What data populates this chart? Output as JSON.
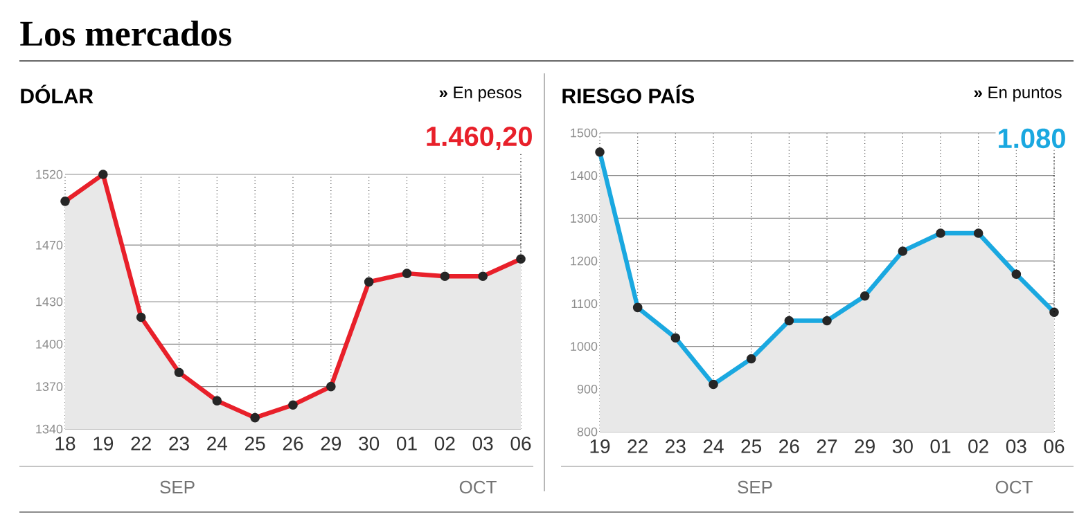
{
  "chart_data": [
    {
      "type": "area",
      "title": "DÓLAR",
      "subtitle": "**»** En pesos",
      "categories": [
        "18",
        "19",
        "22",
        "23",
        "24",
        "25",
        "26",
        "29",
        "30",
        "01",
        "02",
        "03",
        "06"
      ],
      "values": [
        1501,
        1520,
        1419,
        1380,
        1360,
        1348,
        1357,
        1370,
        1444,
        1450,
        1448,
        1448,
        1460.2
      ],
      "color": "#e8202a",
      "ylim": [
        1340,
        1520
      ],
      "yticks": [
        1340,
        1370,
        1400,
        1430,
        1470,
        1520
      ],
      "grid": true,
      "marker": "circle",
      "annotations": [
        "Los mercados",
        "1.460,20",
        "SEP",
        "OCT"
      ]
    },
    {
      "type": "area",
      "title": "RIESGO PAÍS",
      "subtitle": "**»** En puntos",
      "categories": [
        "19",
        "22",
        "23",
        "24",
        "25",
        "26",
        "27",
        "29",
        "30",
        "01",
        "02",
        "03",
        "06"
      ],
      "values": [
        1455,
        1091,
        1020,
        911,
        971,
        1060,
        1060,
        1118,
        1223,
        1265,
        1265,
        1169,
        1080
      ],
      "color": "#1aa8e0",
      "ylim": [
        800,
        1500
      ],
      "yticks": [
        800,
        900,
        1000,
        1100,
        1200,
        1300,
        1400,
        1500
      ],
      "grid": true,
      "marker": "circle",
      "annotations": [
        "1.080",
        "SEP",
        "OCT"
      ]
    }
  ]
}
